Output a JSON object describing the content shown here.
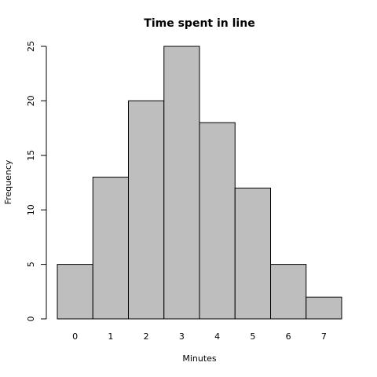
{
  "chart_data": {
    "type": "bar",
    "title": "Time spent in line",
    "xlabel": "Minutes",
    "ylabel": "Frequency",
    "categories": [
      "0",
      "1",
      "2",
      "3",
      "4",
      "5",
      "6",
      "7"
    ],
    "values": [
      5,
      13,
      20,
      25,
      18,
      12,
      5,
      2
    ],
    "color": "#bebebe",
    "ylim": [
      0,
      25
    ],
    "yticks": [
      0,
      5,
      10,
      15,
      20,
      25
    ],
    "grid": false
  }
}
